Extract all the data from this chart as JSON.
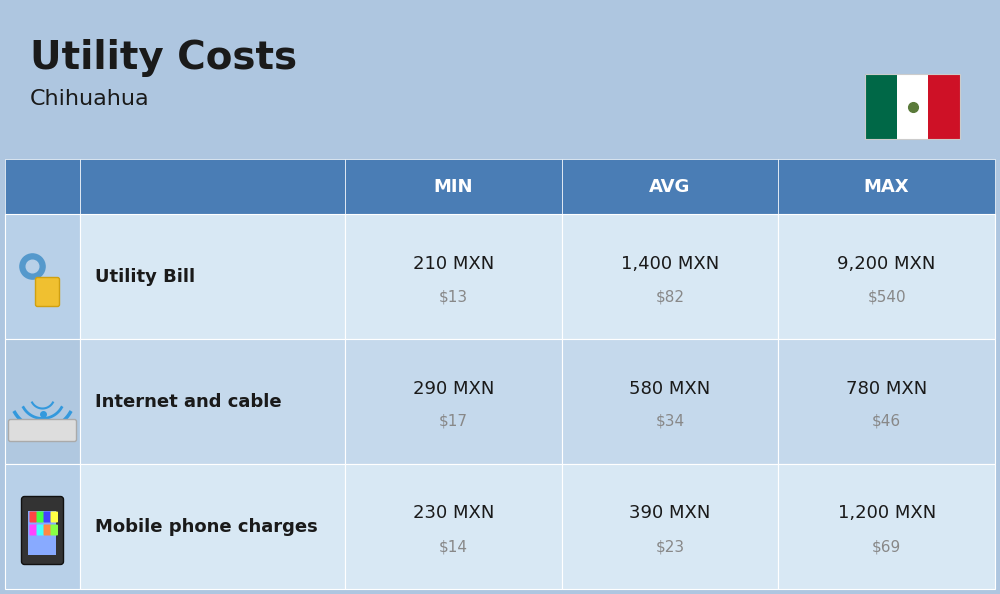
{
  "title": "Utility Costs",
  "subtitle": "Chihuahua",
  "background_color": "#aec6e0",
  "header_color": "#4a7db5",
  "header_text_color": "#ffffff",
  "row_color_light": "#c5d9ec",
  "row_color_lighter": "#d8e8f4",
  "icon_col_color": "#b8d0e8",
  "text_color_main": "#1a1a1a",
  "text_color_sub": "#888888",
  "columns": [
    "MIN",
    "AVG",
    "MAX"
  ],
  "rows": [
    {
      "label": "Utility Bill",
      "icon": "⚡",
      "min_mxn": "210 MXN",
      "min_usd": "$13",
      "avg_mxn": "1,400 MXN",
      "avg_usd": "$82",
      "max_mxn": "9,200 MXN",
      "max_usd": "$540"
    },
    {
      "label": "Internet and cable",
      "icon": "📡",
      "min_mxn": "290 MXN",
      "min_usd": "$17",
      "avg_mxn": "580 MXN",
      "avg_usd": "$34",
      "max_mxn": "780 MXN",
      "max_usd": "$46"
    },
    {
      "label": "Mobile phone charges",
      "icon": "📱",
      "min_mxn": "230 MXN",
      "min_usd": "$14",
      "avg_mxn": "390 MXN",
      "avg_usd": "$23",
      "max_mxn": "1,200 MXN",
      "max_usd": "$69"
    }
  ],
  "flag_colors": [
    "#006847",
    "#ffffff",
    "#ce1126"
  ],
  "title_fontsize": 28,
  "subtitle_fontsize": 16,
  "header_fontsize": 13,
  "cell_fontsize_main": 13,
  "cell_fontsize_sub": 11,
  "label_fontsize": 13
}
